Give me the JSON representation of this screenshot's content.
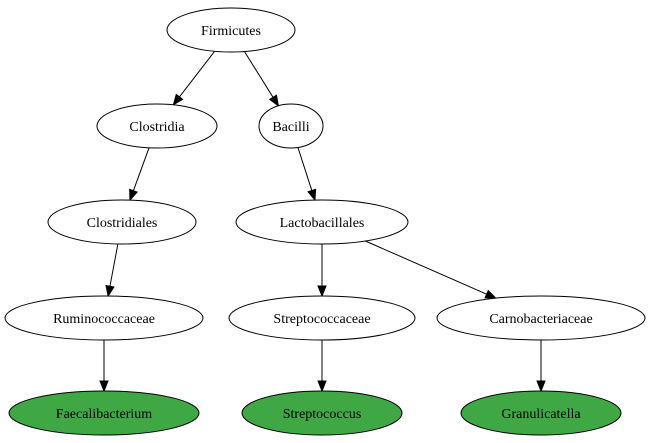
{
  "colors": {
    "default_fill": "#ffffff",
    "leaf_fill": "#3fa844",
    "stroke": "#000000"
  },
  "nodes": [
    {
      "id": "firmicutes",
      "label": "Firmicutes",
      "leaf": false
    },
    {
      "id": "clostridia",
      "label": "Clostridia",
      "leaf": false
    },
    {
      "id": "bacilli",
      "label": "Bacilli",
      "leaf": false
    },
    {
      "id": "clostridiales",
      "label": "Clostridiales",
      "leaf": false
    },
    {
      "id": "lactobacillales",
      "label": "Lactobacillales",
      "leaf": false
    },
    {
      "id": "ruminococcaceae",
      "label": "Ruminococcaceae",
      "leaf": false
    },
    {
      "id": "streptococcaceae",
      "label": "Streptococcaceae",
      "leaf": false
    },
    {
      "id": "carnobacteriaceae",
      "label": "Carnobacteriaceae",
      "leaf": false
    },
    {
      "id": "faecalibacterium",
      "label": "Faecalibacterium",
      "leaf": true
    },
    {
      "id": "streptococcus",
      "label": "Streptococcus",
      "leaf": true
    },
    {
      "id": "granulicatella",
      "label": "Granulicatella",
      "leaf": true
    }
  ],
  "edges": [
    {
      "from": "firmicutes",
      "to": "clostridia"
    },
    {
      "from": "firmicutes",
      "to": "bacilli"
    },
    {
      "from": "clostridia",
      "to": "clostridiales"
    },
    {
      "from": "bacilli",
      "to": "lactobacillales"
    },
    {
      "from": "clostridiales",
      "to": "ruminococcaceae"
    },
    {
      "from": "lactobacillales",
      "to": "streptococcaceae"
    },
    {
      "from": "lactobacillales",
      "to": "carnobacteriaceae"
    },
    {
      "from": "ruminococcaceae",
      "to": "faecalibacterium"
    },
    {
      "from": "streptococcaceae",
      "to": "streptococcus"
    },
    {
      "from": "carnobacteriaceae",
      "to": "granulicatella"
    }
  ]
}
